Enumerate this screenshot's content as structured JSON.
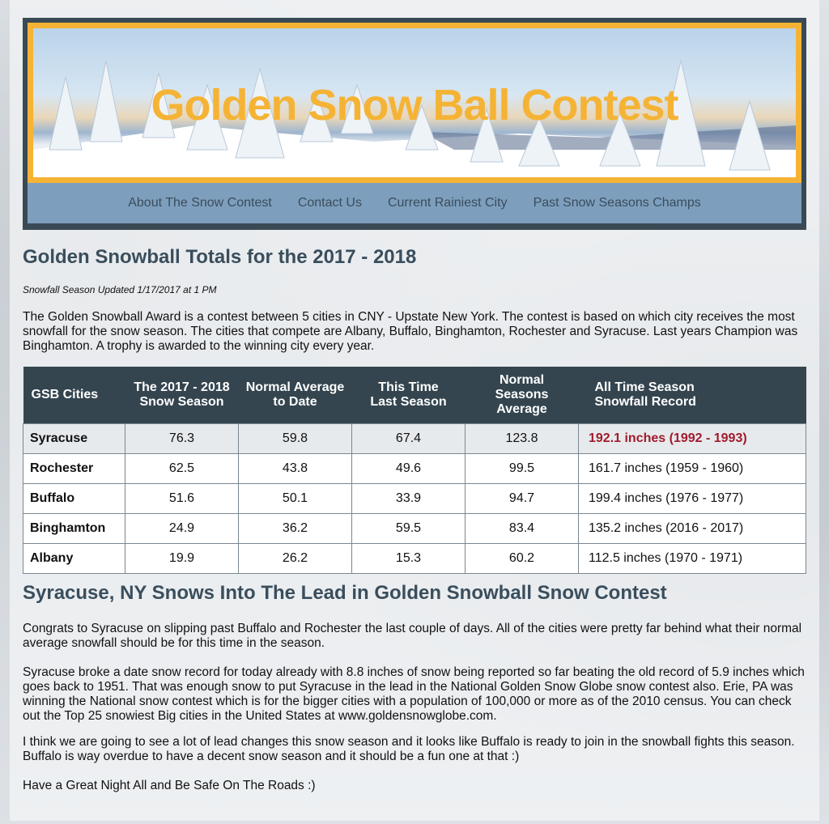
{
  "banner": {
    "title": "Golden Snow Ball Contest"
  },
  "nav": {
    "items": [
      "About The Snow Contest",
      "Contact Us",
      "Current Rainiest City",
      "Past Snow Seasons Champs"
    ]
  },
  "main": {
    "title": "Golden Snowball Totals for the 2017 - 2018",
    "updated": "Snowfall Season Updated 1/17/2017 at 1 PM",
    "intro": "The Golden Snowball Award is a contest between 5 cities in CNY - Upstate New York. The contest is based on which city receives the most snowfall for the snow season. The cities that compete are Albany, Buffalo, Binghamton, Rochester and Syracuse. Last years Champion was Binghamton. A trophy is awarded to the winning city every year."
  },
  "table": {
    "headers": [
      "GSB Cities",
      "The 2017 - 2018\nSnow Season",
      "Normal Average\nto Date",
      "This Time\nLast Season",
      "Normal\nSeasons\nAverage",
      "All Time Season\nSnowfall Record"
    ],
    "rows": [
      [
        "Syracuse",
        "76.3",
        "59.8",
        "67.4",
        "123.8",
        "192.1 inches (1992 - 1993)"
      ],
      [
        "Rochester",
        "62.5",
        "43.8",
        "49.6",
        "99.5",
        "161.7 inches (1959 - 1960)"
      ],
      [
        "Buffalo",
        "51.6",
        "50.1",
        "33.9",
        "94.7",
        "199.4 inches (1976 - 1977)"
      ],
      [
        "Binghamton",
        "24.9",
        "36.2",
        "59.5",
        "83.4",
        "135.2 inches (2016 - 2017)"
      ],
      [
        "Albany",
        "19.9",
        "26.2",
        "15.3",
        "60.2",
        "112.5 inches (1970 - 1971)"
      ]
    ],
    "highlight_color": "#a11b2c"
  },
  "article": {
    "title": "Syracuse, NY Snows Into The Lead in Golden Snowball Snow Contest",
    "paragraphs": [
      "Congrats to Syracuse on slipping past Buffalo and Rochester the last couple of days. All of the cities were pretty far behind what their normal average snowfall should be for this time in the season.",
      "Syracuse broke a date snow record for today already with 8.8 inches of snow being reported so far beating the old record of 5.9 inches which goes back to 1951. That was enough snow to put Syracuse in the lead in the National Golden Snow Globe snow contest also. Erie, PA was winning the National snow contest which is for the bigger cities with a population of 100,000 or more as of the 2010 census. You can check out the Top 25 snowiest Big cities in the United States at www.goldensnowglobe.com.",
      "I think we are going to see a lot of lead changes this snow season and it looks like Buffalo is ready to join in the snowball fights this season. Buffalo is way overdue to have a decent snow season and it should be a fun one at that :)",
      "Have a Great Night All and Be Safe On The Roads :)"
    ]
  },
  "colors": {
    "accent": "#f5b335",
    "nav_bg": "#7d9fbd",
    "header_dark": "#34454f",
    "heading": "#3a4e5d"
  }
}
